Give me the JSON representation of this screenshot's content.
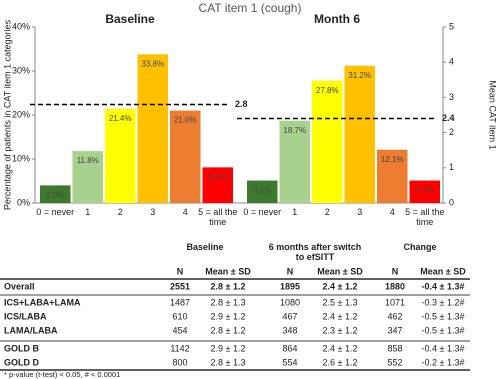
{
  "chart_data": {
    "type": "bar",
    "title": "CAT item 1 (cough)",
    "ylabel": "Percentage of patients in CAT item 1 categories",
    "y2label": "Mean CAT item 1",
    "ylim": [
      0,
      40
    ],
    "yticks": [
      {
        "value": 0,
        "label": "0%"
      },
      {
        "value": 10,
        "label": "10%"
      },
      {
        "value": 20,
        "label": "20%"
      },
      {
        "value": 30,
        "label": "30%"
      },
      {
        "value": 40,
        "label": "40%"
      }
    ],
    "y2lim": [
      0,
      5
    ],
    "y2ticks": [
      0,
      1,
      2,
      3,
      4,
      5
    ],
    "categories": [
      "0 = never",
      "1",
      "2",
      "3",
      "4",
      "5 = all the time"
    ],
    "colors": [
      "#3d7a2e",
      "#a9d18e",
      "#ffff00",
      "#ffc000",
      "#ed7d31",
      "#ff0000"
    ],
    "panels": [
      {
        "title": "Baseline",
        "values": [
          4.0,
          11.8,
          21.4,
          33.8,
          21.0,
          8.1
        ],
        "value_labels": [
          "4.0%",
          "11.8%",
          "21.4%",
          "33.8%",
          "21.0%",
          "8.1%"
        ],
        "mean": 2.8,
        "mean_axis": "y2"
      },
      {
        "title": "Month 6",
        "values": [
          5.1,
          18.7,
          27.8,
          31.2,
          12.1,
          5.1
        ],
        "value_labels": [
          "5.1%",
          "18.7%",
          "27.8%",
          "31.2%",
          "12.1%",
          "5.1%"
        ],
        "mean": 2.4,
        "mean_axis": "y2"
      }
    ]
  },
  "table": {
    "groups": [
      "Baseline",
      "6 months after switch to efSITT",
      "Change"
    ],
    "subheaders": [
      "N",
      "Mean ± SD",
      "N",
      "Mean ± SD",
      "N",
      "Mean ± SD"
    ],
    "rows": [
      [
        "Overall",
        2551,
        "2.8 ± 1.2",
        1895,
        "2.4 ± 1.2",
        1880,
        "-0.4 ± 1.3#"
      ],
      [
        "ICS+LABA+LAMA",
        1487,
        "2.8 ± 1.3",
        1080,
        "2.5 ± 1.3",
        1071,
        "-0.3 ± 1.2#"
      ],
      [
        "ICS/LABA",
        610,
        "2.9 ± 1.2",
        467,
        "2.4 ± 1.2",
        462,
        "-0.5 ± 1.3#"
      ],
      [
        "LAMA/LABA",
        454,
        "2.8 ± 1.2",
        348,
        "2.3 ± 1.2",
        347,
        "-0.5 ± 1.3#"
      ],
      [
        "GOLD B",
        1142,
        "2.9 ± 1.2",
        864,
        "2.4 ± 1.2",
        858,
        "-0.4 ± 1.3#"
      ],
      [
        "GOLD D",
        800,
        "2.8 ± 1.3",
        554,
        "2.6 ± 1.2",
        552,
        "-0.2 ± 1.3#"
      ]
    ],
    "footnote": "* p-value (t-test) < 0.05, # < 0.0001"
  }
}
